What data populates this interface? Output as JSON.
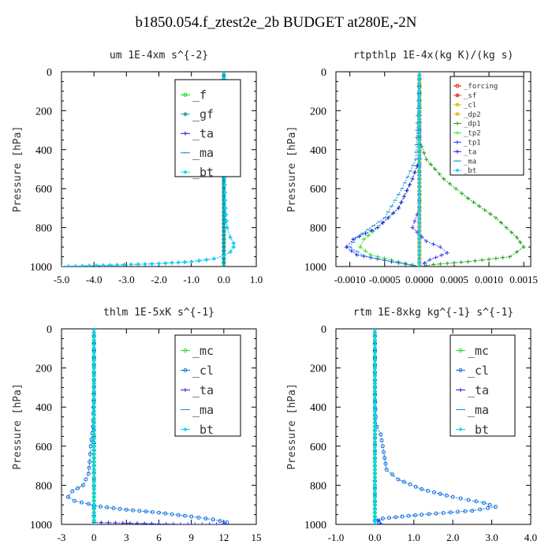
{
  "page_title": "b1850.054.f_ztest2e_2b  BUDGET at280E,-2N",
  "colors": {
    "f": "#00e000",
    "gf": "#1fa0a0",
    "ta": "#2020e0",
    "ma": "#1090d0",
    "bt": "#00d8f8",
    "cl": "#1070e0",
    "mc": "#30e030",
    "forcing": "#e02020",
    "sf": "#f03030",
    "dp2": "#e0c020",
    "dp1": "#20a020",
    "tp2": "#30e030",
    "tp1": "#4040f0"
  },
  "chart_data": [
    {
      "type": "line",
      "title": "um  1E-4xm s^{-2}",
      "ylabel": "Pressure [hPa]",
      "xlim": [
        -5.0,
        1.0
      ],
      "ylim": [
        1000,
        0
      ],
      "y_inverted": true,
      "x_ticks": [
        "-5.0",
        "-4.0",
        "-3.0",
        "-2.0",
        "-1.0",
        "0.0",
        "1.0"
      ],
      "y_ticks": [
        "0",
        "200",
        "400",
        "600",
        "800",
        "1000"
      ],
      "legend_position": "top-right",
      "legend": [
        "_f",
        "_gf",
        "_ta",
        "_ma",
        "_bt"
      ],
      "series": [
        {
          "name": "_f",
          "color_key": "f",
          "marker": "circle",
          "points": [
            [
              0,
              0
            ],
            [
              0,
              100
            ],
            [
              0,
              200
            ],
            [
              0,
              300
            ],
            [
              0,
              400
            ],
            [
              0,
              500
            ],
            [
              0,
              600
            ],
            [
              0,
              700
            ],
            [
              0,
              800
            ],
            [
              0,
              900
            ],
            [
              0,
              1000
            ]
          ]
        },
        {
          "name": "_gf",
          "color_key": "gf",
          "marker": "star",
          "points": [
            [
              0,
              0
            ],
            [
              0,
              200
            ],
            [
              0,
              400
            ],
            [
              0,
              600
            ],
            [
              0,
              800
            ],
            [
              0,
              1000
            ]
          ]
        },
        {
          "name": "_ta",
          "color_key": "ta",
          "marker": "plus",
          "points": [
            [
              0,
              0
            ],
            [
              0.02,
              500
            ],
            [
              0.05,
              700
            ],
            [
              0.1,
              800
            ],
            [
              0.2,
              850
            ],
            [
              0.3,
              880
            ],
            [
              0.3,
              900
            ],
            [
              0.2,
              925
            ],
            [
              0,
              945
            ],
            [
              -0.3,
              960
            ],
            [
              -1,
              975
            ],
            [
              -2,
              985
            ],
            [
              -3.5,
              993
            ],
            [
              -5,
              1000
            ]
          ]
        },
        {
          "name": "_ma",
          "color_key": "ma",
          "marker": "dash",
          "points": [
            [
              0,
              0
            ],
            [
              0,
              1000
            ]
          ]
        },
        {
          "name": "_bt",
          "color_key": "bt",
          "marker": "diamond",
          "points": [
            [
              0,
              0
            ],
            [
              0.02,
              500
            ],
            [
              0.05,
              700
            ],
            [
              0.1,
              800
            ],
            [
              0.2,
              850
            ],
            [
              0.3,
              880
            ],
            [
              0.3,
              900
            ],
            [
              0.2,
              925
            ],
            [
              0,
              945
            ],
            [
              -0.3,
              960
            ],
            [
              -1,
              975
            ],
            [
              -2,
              985
            ],
            [
              -3.5,
              993
            ],
            [
              -5,
              1000
            ]
          ]
        }
      ]
    },
    {
      "type": "line",
      "title": "rtpthlp  1E-4x(kg K)/(kg s)",
      "ylabel": "Pressure [hPa]",
      "xlim": [
        -0.0012,
        0.0016
      ],
      "ylim": [
        1000,
        0
      ],
      "y_inverted": true,
      "x_ticks": [
        "-0.0010",
        "-0.0005",
        "0.0000",
        "0.0005",
        "0.0010",
        "0.0015"
      ],
      "x_tick_values": [
        -0.001,
        -0.0005,
        0,
        0.0005,
        0.001,
        0.0015
      ],
      "y_ticks": [
        "0",
        "200",
        "400",
        "600",
        "800",
        "1000"
      ],
      "legend_position": "top-right",
      "legend": [
        "_forcing",
        "_sf",
        "_cl",
        "_dp2",
        "_dp1",
        "_tp2",
        "_tp1",
        "_ta",
        "_ma",
        "_bt"
      ],
      "series": [
        {
          "name": "_forcing",
          "color_key": "forcing",
          "marker": "circle",
          "points": [
            [
              0,
              0
            ],
            [
              0,
              1000
            ]
          ]
        },
        {
          "name": "_sf",
          "color_key": "sf",
          "marker": "star",
          "points": [
            [
              0,
              0
            ],
            [
              0,
              1000
            ]
          ]
        },
        {
          "name": "_cl",
          "color_key": "dp2",
          "marker": "star",
          "points": [
            [
              0,
              0
            ],
            [
              0,
              1000
            ]
          ]
        },
        {
          "name": "_dp2",
          "color_key": "dp2",
          "marker": "star",
          "points": [
            [
              0,
              0
            ],
            [
              0,
              1000
            ]
          ]
        },
        {
          "name": "_dp1",
          "color_key": "dp1",
          "marker": "plus",
          "points": [
            [
              0,
              0
            ],
            [
              0,
              350
            ],
            [
              0.0001,
              450
            ],
            [
              0.00035,
              550
            ],
            [
              0.0007,
              650
            ],
            [
              0.0011,
              750
            ],
            [
              0.0014,
              850
            ],
            [
              0.0015,
              900
            ],
            [
              0.0013,
              950
            ],
            [
              0.0007,
              975
            ],
            [
              0.0002,
              990
            ],
            [
              0,
              1000
            ]
          ]
        },
        {
          "name": "_tp2",
          "color_key": "tp2",
          "marker": "plus",
          "points": [
            [
              0,
              0
            ],
            [
              0,
              450
            ],
            [
              -0.0001,
              550
            ],
            [
              -0.0003,
              700
            ],
            [
              -0.0006,
              800
            ],
            [
              -0.0008,
              860
            ],
            [
              -0.00085,
              900
            ],
            [
              -0.0007,
              940
            ],
            [
              -0.0003,
              975
            ],
            [
              0,
              1000
            ]
          ]
        },
        {
          "name": "_tp1",
          "color_key": "tp1",
          "marker": "plus",
          "points": [
            [
              0,
              0
            ],
            [
              0,
              700
            ],
            [
              -0.0001,
              800
            ],
            [
              0.0001,
              870
            ],
            [
              0.0003,
              900
            ],
            [
              0.0004,
              930
            ],
            [
              0.00015,
              965
            ],
            [
              0,
              1000
            ]
          ]
        },
        {
          "name": "_ta",
          "color_key": "ta",
          "marker": "plus",
          "points": [
            [
              0,
              0
            ],
            [
              0,
              450
            ],
            [
              -0.0001,
              550
            ],
            [
              -0.0003,
              700
            ],
            [
              -0.0006,
              800
            ],
            [
              -0.00095,
              860
            ],
            [
              -0.00105,
              900
            ],
            [
              -0.0009,
              940
            ],
            [
              -0.0004,
              975
            ],
            [
              0,
              1000
            ]
          ]
        },
        {
          "name": "_ma",
          "color_key": "ma",
          "marker": "dash",
          "points": [
            [
              0,
              0
            ],
            [
              -5e-05,
              450
            ],
            [
              -0.00025,
              600
            ],
            [
              -0.0005,
              750
            ],
            [
              -0.0009,
              850
            ],
            [
              -0.001,
              900
            ],
            [
              -0.0008,
              945
            ],
            [
              -0.0004,
              975
            ],
            [
              0,
              1000
            ]
          ]
        },
        {
          "name": "_bt",
          "color_key": "bt",
          "marker": "diamond",
          "points": [
            [
              0,
              0
            ],
            [
              0,
              1000
            ]
          ]
        }
      ]
    },
    {
      "type": "line",
      "title": "thlm  1E-5xK s^{-1}",
      "ylabel": "Pressure [hPa]",
      "xlim": [
        -3,
        15
      ],
      "ylim": [
        1000,
        0
      ],
      "y_inverted": true,
      "x_ticks": [
        "-3",
        "0",
        "3",
        "6",
        "9",
        "12",
        "15"
      ],
      "y_ticks": [
        "0",
        "200",
        "400",
        "600",
        "800",
        "1000"
      ],
      "legend_position": "top-right",
      "legend": [
        "_mc",
        "_cl",
        "_ta",
        "_ma",
        "_bt"
      ],
      "series": [
        {
          "name": "_mc",
          "color_key": "mc",
          "marker": "circle",
          "points": [
            [
              0,
              0
            ],
            [
              0,
              1000
            ]
          ]
        },
        {
          "name": "_cl",
          "color_key": "cl",
          "marker": "circle",
          "points": [
            [
              0,
              0
            ],
            [
              0,
              300
            ],
            [
              -0.1,
              500
            ],
            [
              -0.3,
              600
            ],
            [
              -0.4,
              680
            ],
            [
              -0.5,
              740
            ],
            [
              -1,
              800
            ],
            [
              -2,
              830
            ],
            [
              -2.4,
              860
            ],
            [
              -1.8,
              880
            ],
            [
              -0.5,
              895
            ],
            [
              0,
              905
            ],
            [
              3,
              925
            ],
            [
              6,
              940
            ],
            [
              9,
              960
            ],
            [
              11,
              975
            ],
            [
              12.3,
              990
            ],
            [
              12,
              1000
            ]
          ]
        },
        {
          "name": "_ta",
          "color_key": "ta",
          "marker": "plus",
          "points": [
            [
              0,
              0
            ],
            [
              0,
              990
            ],
            [
              8,
              1000
            ],
            [
              12,
              1000
            ]
          ]
        },
        {
          "name": "_ma",
          "color_key": "ma",
          "marker": "dash",
          "points": [
            [
              0,
              0
            ],
            [
              0,
              1000
            ]
          ]
        },
        {
          "name": "_bt",
          "color_key": "bt",
          "marker": "diamond",
          "points": [
            [
              0,
              0
            ],
            [
              0,
              1000
            ]
          ]
        }
      ]
    },
    {
      "type": "line",
      "title": "rtm  1E-8xkg kg^{-1} s^{-1}",
      "ylabel": "Pressure [hPa]",
      "xlim": [
        -1.0,
        4.0
      ],
      "ylim": [
        1000,
        0
      ],
      "y_inverted": true,
      "x_ticks": [
        "-1.0",
        "0.0",
        "1.0",
        "2.0",
        "3.0",
        "4.0"
      ],
      "y_ticks": [
        "0",
        "200",
        "400",
        "600",
        "800",
        "1000"
      ],
      "legend_position": "top-right",
      "legend": [
        "_mc",
        "_cl",
        "_ta",
        "_ma",
        "_bt"
      ],
      "series": [
        {
          "name": "_mc",
          "color_key": "mc",
          "marker": "circle",
          "points": [
            [
              0,
              0
            ],
            [
              0,
              1000
            ]
          ]
        },
        {
          "name": "_cl",
          "color_key": "cl",
          "marker": "circle",
          "points": [
            [
              0,
              0
            ],
            [
              0,
              300
            ],
            [
              0.02,
              450
            ],
            [
              0.05,
              500
            ],
            [
              0.15,
              540
            ],
            [
              0.2,
              600
            ],
            [
              0.25,
              660
            ],
            [
              0.3,
              720
            ],
            [
              0.6,
              770
            ],
            [
              1.2,
              820
            ],
            [
              2,
              860
            ],
            [
              2.8,
              890
            ],
            [
              3.1,
              910
            ],
            [
              2.5,
              930
            ],
            [
              1.2,
              950
            ],
            [
              0.2,
              970
            ],
            [
              0,
              980
            ],
            [
              0.1,
              990
            ],
            [
              0.15,
              1000
            ]
          ]
        },
        {
          "name": "_ta",
          "color_key": "ta",
          "marker": "plus",
          "points": [
            [
              0,
              0
            ],
            [
              0,
              960
            ],
            [
              0.1,
              980
            ],
            [
              0.15,
              1000
            ]
          ]
        },
        {
          "name": "_ma",
          "color_key": "ma",
          "marker": "dash",
          "points": [
            [
              0,
              0
            ],
            [
              0,
              1000
            ]
          ]
        },
        {
          "name": "_bt",
          "color_key": "bt",
          "marker": "diamond",
          "points": [
            [
              0,
              0
            ],
            [
              0,
              1000
            ]
          ]
        }
      ]
    }
  ]
}
